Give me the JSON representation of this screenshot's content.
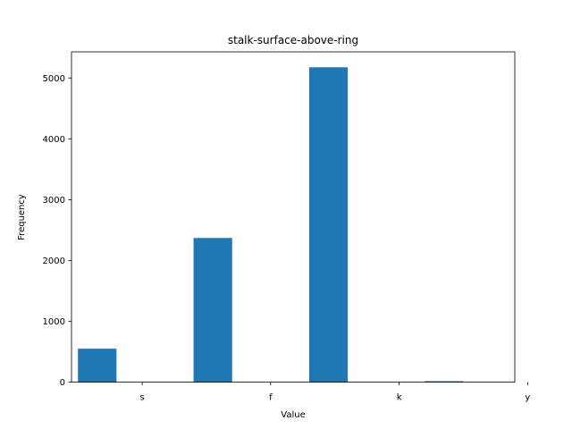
{
  "chart_data": {
    "type": "bar",
    "title": "stalk-surface-above-ring",
    "xlabel": "Value",
    "ylabel": "Frequency",
    "bar_color": "#1f77b4",
    "x_ticks": [
      "s",
      "f",
      "k",
      "y"
    ],
    "bars": [
      {
        "x_start": -0.5,
        "x_end": -0.2,
        "value": 550
      },
      {
        "x_start": 0.4,
        "x_end": 0.7,
        "value": 2370
      },
      {
        "x_start": 1.3,
        "x_end": 1.6,
        "value": 5176
      },
      {
        "x_start": 2.2,
        "x_end": 2.5,
        "value": 16
      }
    ],
    "xlim": [
      -0.55,
      2.9
    ],
    "ylim": [
      0,
      5430
    ],
    "y_ticks": [
      0,
      1000,
      2000,
      3000,
      4000,
      5000
    ],
    "grid": false,
    "legend": "none"
  }
}
